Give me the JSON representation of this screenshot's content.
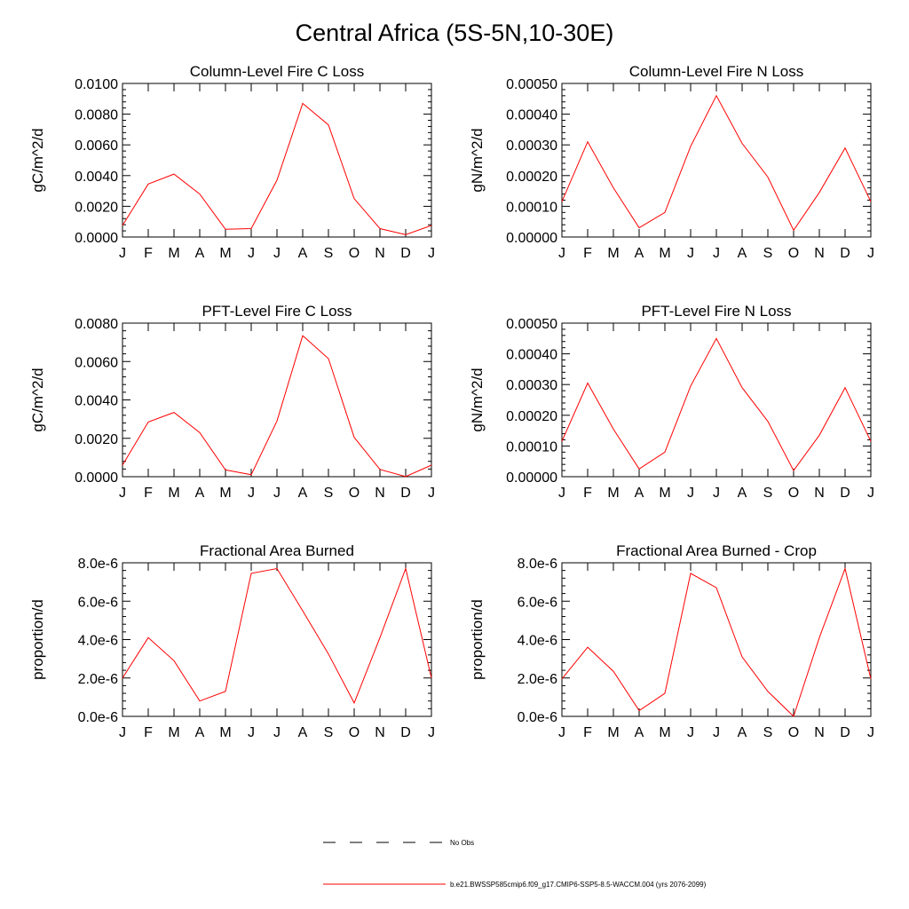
{
  "figure": {
    "title": "Central Africa (5S-5N,10-30E)"
  },
  "chart_data": [
    {
      "type": "line",
      "title": "Column-Level Fire C Loss",
      "ylabel": "gC/m^2/d",
      "categories": [
        "J",
        "F",
        "M",
        "A",
        "M",
        "J",
        "J",
        "A",
        "S",
        "O",
        "N",
        "D",
        "J"
      ],
      "ylim": [
        0,
        0.01
      ],
      "yticks": [
        0,
        0.002,
        0.004,
        0.006,
        0.008,
        0.01
      ],
      "ytick_labels": [
        "0.0000",
        "0.0020",
        "0.0040",
        "0.0060",
        "0.0080",
        "0.0100"
      ],
      "series": [
        {
          "values": [
            0.00075,
            0.00345,
            0.0041,
            0.0028,
            0.0005,
            0.00055,
            0.0037,
            0.0087,
            0.0073,
            0.0025,
            0.00055,
            0.00015,
            0.00075
          ]
        }
      ]
    },
    {
      "type": "line",
      "title": "Column-Level Fire N Loss",
      "ylabel": "gN/m^2/d",
      "categories": [
        "J",
        "F",
        "M",
        "A",
        "M",
        "J",
        "J",
        "A",
        "S",
        "O",
        "N",
        "D",
        "J"
      ],
      "ylim": [
        0,
        0.0005
      ],
      "yticks": [
        0,
        0.0001,
        0.0002,
        0.0003,
        0.0004,
        0.0005
      ],
      "ytick_labels": [
        "0.00000",
        "0.00010",
        "0.00020",
        "0.00030",
        "0.00040",
        "0.00050"
      ],
      "series": [
        {
          "values": [
            0.000115,
            0.00031,
            0.00016,
            3e-05,
            8e-05,
            0.000295,
            0.00046,
            0.000305,
            0.000195,
            2.2e-05,
            0.000145,
            0.00029,
            0.000115
          ]
        }
      ]
    },
    {
      "type": "line",
      "title": "PFT-Level Fire C Loss",
      "ylabel": "gC/m^2/d",
      "categories": [
        "J",
        "F",
        "M",
        "A",
        "M",
        "J",
        "J",
        "A",
        "S",
        "O",
        "N",
        "D",
        "J"
      ],
      "ylim": [
        0,
        0.008
      ],
      "yticks": [
        0,
        0.002,
        0.004,
        0.006,
        0.008
      ],
      "ytick_labels": [
        "0.0000",
        "0.0020",
        "0.0040",
        "0.0060",
        "0.0080"
      ],
      "series": [
        {
          "values": [
            0.0006,
            0.00285,
            0.00335,
            0.0023,
            0.00035,
            0.0001,
            0.0029,
            0.00735,
            0.00615,
            0.00205,
            0.00038,
            1e-05,
            0.0006
          ]
        }
      ]
    },
    {
      "type": "line",
      "title": "PFT-Level Fire N Loss",
      "ylabel": "gN/m^2/d",
      "categories": [
        "J",
        "F",
        "M",
        "A",
        "M",
        "J",
        "J",
        "A",
        "S",
        "O",
        "N",
        "D",
        "J"
      ],
      "ylim": [
        0,
        0.0005
      ],
      "yticks": [
        0,
        0.0001,
        0.0002,
        0.0003,
        0.0004,
        0.0005
      ],
      "ytick_labels": [
        "0.00000",
        "0.00010",
        "0.00020",
        "0.00030",
        "0.00040",
        "0.00050"
      ],
      "series": [
        {
          "values": [
            0.000115,
            0.000305,
            0.000155,
            2.5e-05,
            8e-05,
            0.000295,
            0.00045,
            0.00029,
            0.00018,
            2e-05,
            0.000135,
            0.00029,
            0.000115
          ]
        }
      ]
    },
    {
      "type": "line",
      "title": "Fractional Area Burned",
      "ylabel": "proportion/d",
      "categories": [
        "J",
        "F",
        "M",
        "A",
        "M",
        "J",
        "J",
        "A",
        "S",
        "O",
        "N",
        "D",
        "J"
      ],
      "ylim": [
        0,
        8e-06
      ],
      "yticks": [
        0,
        2e-06,
        4e-06,
        6e-06,
        8e-06
      ],
      "ytick_labels": [
        "0.0e-6",
        "2.0e-6",
        "4.0e-6",
        "6.0e-6",
        "8.0e-6"
      ],
      "series": [
        {
          "values": [
            2e-06,
            4.1e-06,
            2.9e-06,
            8e-07,
            1.3e-06,
            7.45e-06,
            7.7e-06,
            5.5e-06,
            3.25e-06,
            7e-07,
            4.1e-06,
            7.7e-06,
            2e-06
          ]
        }
      ]
    },
    {
      "type": "line",
      "title": "Fractional Area Burned - Crop",
      "ylabel": "proportion/d",
      "categories": [
        "J",
        "F",
        "M",
        "A",
        "M",
        "J",
        "J",
        "A",
        "S",
        "O",
        "N",
        "D",
        "J"
      ],
      "ylim": [
        0,
        8e-06
      ],
      "yticks": [
        0,
        2e-06,
        4e-06,
        6e-06,
        8e-06
      ],
      "ytick_labels": [
        "0.0e-6",
        "2.0e-6",
        "4.0e-6",
        "6.0e-6",
        "8.0e-6"
      ],
      "series": [
        {
          "values": [
            1.95e-06,
            3.6e-06,
            2.35e-06,
            3e-07,
            1.2e-06,
            7.45e-06,
            6.7e-06,
            3.1e-06,
            1.3e-06,
            0.0,
            4.1e-06,
            7.7e-06,
            1.95e-06
          ]
        }
      ]
    }
  ],
  "legend": {
    "items": [
      {
        "label": "No Obs",
        "style": "dashed",
        "color": "#000000"
      },
      {
        "label": "b.e21.BWSSP585cmip6.f09_g17.CMIP6-SSP5-8.5-WACCM.004 (yrs 2076-2099)",
        "style": "solid",
        "color": "#ff0000"
      }
    ]
  },
  "colors": {
    "series": "#ff0000",
    "axes": "#000000"
  }
}
